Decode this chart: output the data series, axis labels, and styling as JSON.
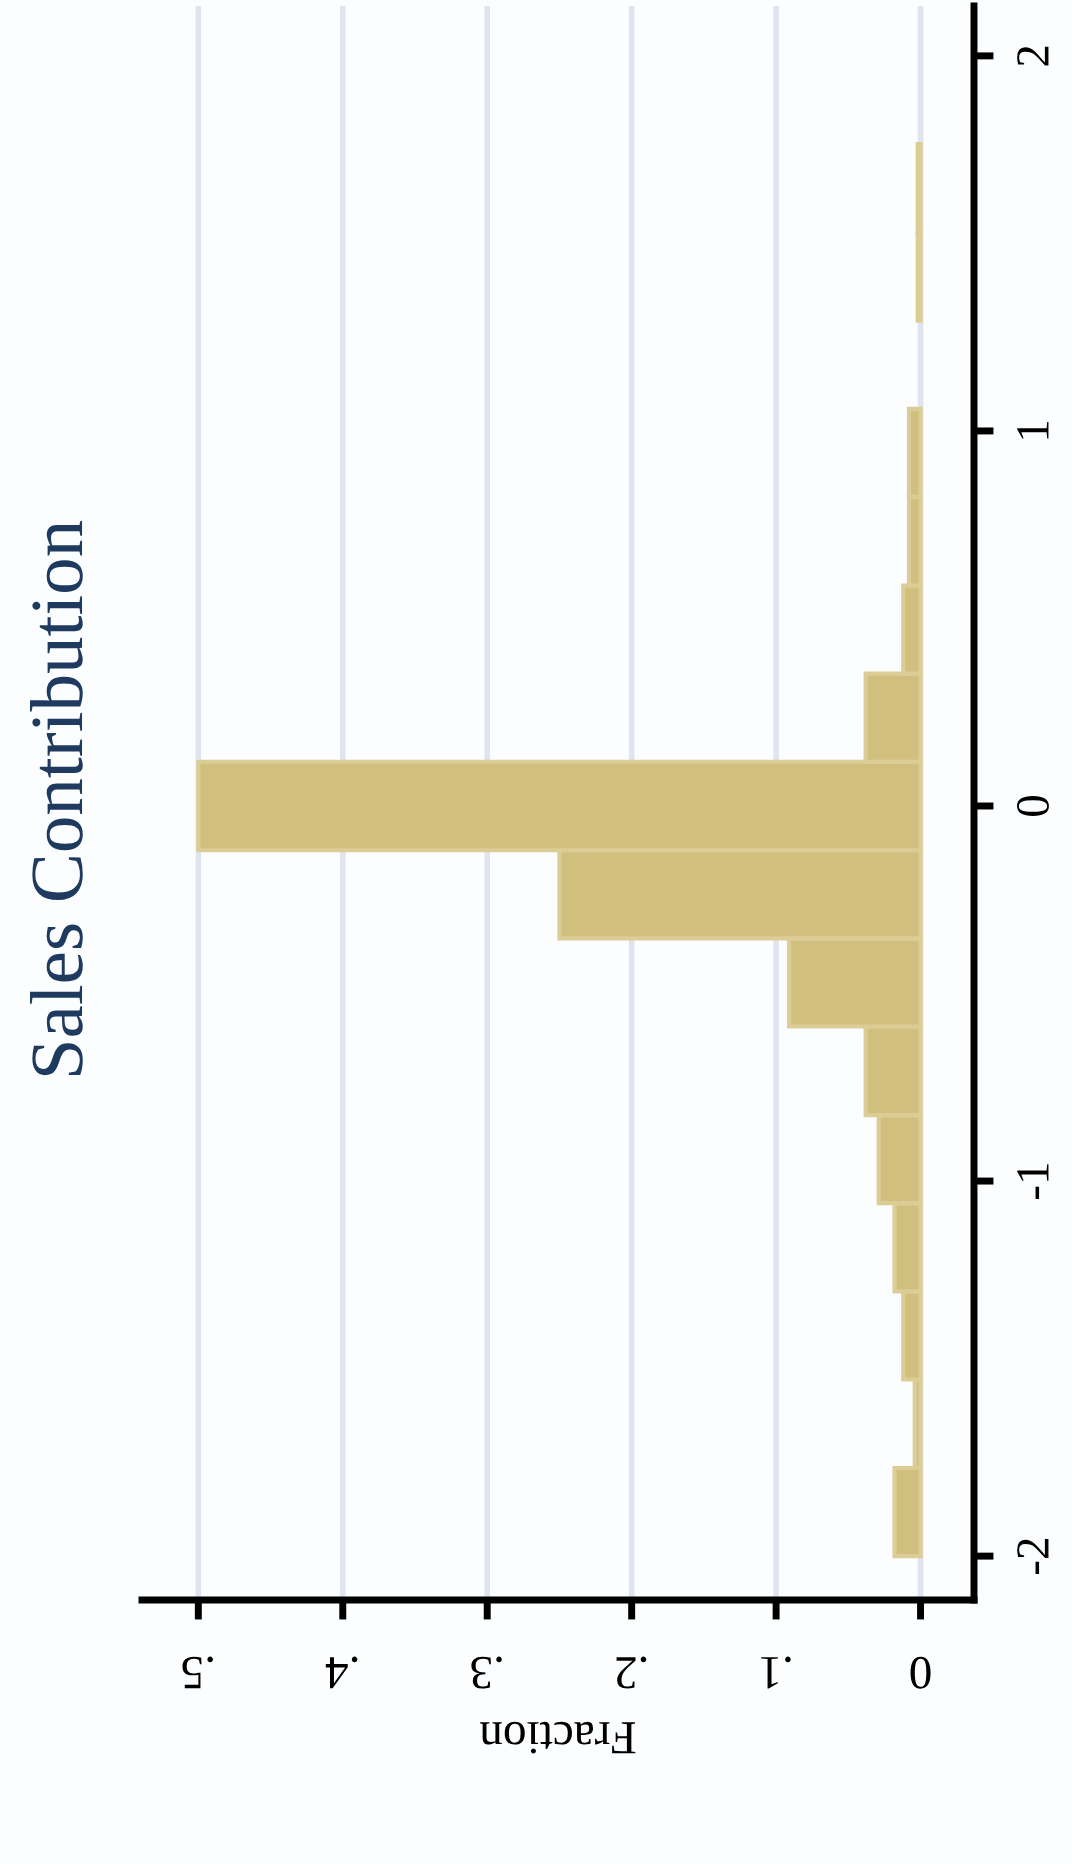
{
  "chart_data": {
    "type": "histogram",
    "title": "Sales Contribution",
    "xlabel": "Fraction",
    "orientation": "horizontal",
    "bins": [
      -2.0,
      -1.765,
      -1.529,
      -1.294,
      -1.059,
      -0.824,
      -0.588,
      -0.353,
      -0.118,
      0.118,
      0.353,
      0.588,
      0.824,
      1.059,
      1.294,
      1.529,
      1.765,
      2.0
    ],
    "values": [
      0.018,
      0.004,
      0.012,
      0.018,
      0.029,
      0.038,
      0.091,
      0.25,
      0.5,
      0.038,
      0.012,
      0.008,
      0.008,
      0,
      0.002,
      0.002,
      0
    ],
    "color": "#d1bf7e",
    "xlim": [
      0.539,
      -0.037
    ],
    "xticks": [
      {
        "value": 0.5,
        "label": ".5"
      },
      {
        "value": 0.4,
        "label": ".4"
      },
      {
        "value": 0.3,
        "label": ".3"
      },
      {
        "value": 0.2,
        "label": ".2"
      },
      {
        "value": 0.1,
        "label": ".1"
      },
      0
    ],
    "ylim": [
      -2.117,
      2.133
    ],
    "yticks": [
      -2,
      -1,
      0,
      1,
      2
    ],
    "grid": "x"
  }
}
